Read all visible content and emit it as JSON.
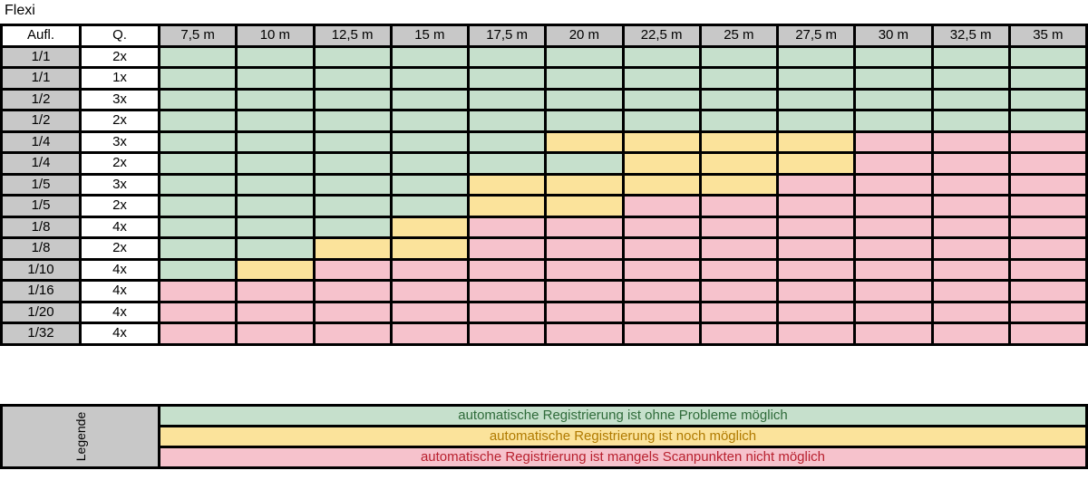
{
  "title": "Flexi",
  "header": {
    "col1": "Aufl.",
    "col2": "Q.",
    "distances": [
      "7,5 m",
      "10 m",
      "12,5 m",
      "15 m",
      "17,5 m",
      "20 m",
      "22,5 m",
      "25 m",
      "27,5 m",
      "30 m",
      "32,5 m",
      "35 m"
    ]
  },
  "rows": [
    {
      "aufl": "1/1",
      "q": "2x",
      "cells": [
        "g",
        "g",
        "g",
        "g",
        "g",
        "g",
        "g",
        "g",
        "g",
        "g",
        "g",
        "g"
      ]
    },
    {
      "aufl": "1/1",
      "q": "1x",
      "cells": [
        "g",
        "g",
        "g",
        "g",
        "g",
        "g",
        "g",
        "g",
        "g",
        "g",
        "g",
        "g"
      ]
    },
    {
      "aufl": "1/2",
      "q": "3x",
      "cells": [
        "g",
        "g",
        "g",
        "g",
        "g",
        "g",
        "g",
        "g",
        "g",
        "g",
        "g",
        "g"
      ]
    },
    {
      "aufl": "1/2",
      "q": "2x",
      "cells": [
        "g",
        "g",
        "g",
        "g",
        "g",
        "g",
        "g",
        "g",
        "g",
        "g",
        "g",
        "g"
      ]
    },
    {
      "aufl": "1/4",
      "q": "3x",
      "cells": [
        "g",
        "g",
        "g",
        "g",
        "g",
        "y",
        "y",
        "y",
        "y",
        "r",
        "r",
        "r"
      ]
    },
    {
      "aufl": "1/4",
      "q": "2x",
      "cells": [
        "g",
        "g",
        "g",
        "g",
        "g",
        "g",
        "y",
        "y",
        "y",
        "r",
        "r",
        "r"
      ]
    },
    {
      "aufl": "1/5",
      "q": "3x",
      "cells": [
        "g",
        "g",
        "g",
        "g",
        "y",
        "y",
        "y",
        "y",
        "r",
        "r",
        "r",
        "r"
      ]
    },
    {
      "aufl": "1/5",
      "q": "2x",
      "cells": [
        "g",
        "g",
        "g",
        "g",
        "y",
        "y",
        "r",
        "r",
        "r",
        "r",
        "r",
        "r"
      ]
    },
    {
      "aufl": "1/8",
      "q": "4x",
      "cells": [
        "g",
        "g",
        "g",
        "y",
        "r",
        "r",
        "r",
        "r",
        "r",
        "r",
        "r",
        "r"
      ]
    },
    {
      "aufl": "1/8",
      "q": "2x",
      "cells": [
        "g",
        "g",
        "y",
        "y",
        "r",
        "r",
        "r",
        "r",
        "r",
        "r",
        "r",
        "r"
      ]
    },
    {
      "aufl": "1/10",
      "q": "4x",
      "cells": [
        "g",
        "y",
        "r",
        "r",
        "r",
        "r",
        "r",
        "r",
        "r",
        "r",
        "r",
        "r"
      ]
    },
    {
      "aufl": "1/16",
      "q": "4x",
      "cells": [
        "r",
        "r",
        "r",
        "r",
        "r",
        "r",
        "r",
        "r",
        "r",
        "r",
        "r",
        "r"
      ]
    },
    {
      "aufl": "1/20",
      "q": "4x",
      "cells": [
        "r",
        "r",
        "r",
        "r",
        "r",
        "r",
        "r",
        "r",
        "r",
        "r",
        "r",
        "r"
      ]
    },
    {
      "aufl": "1/32",
      "q": "4x",
      "cells": [
        "r",
        "r",
        "r",
        "r",
        "r",
        "r",
        "r",
        "r",
        "r",
        "r",
        "r",
        "r"
      ]
    }
  ],
  "legend": {
    "title": "Legende",
    "green": "automatische Registrierung ist ohne Probleme möglich",
    "yellow": "automatische Registrierung ist noch möglich",
    "red": "automatische Registrierung ist mangels Scanpunkten nicht möglich"
  },
  "colors": {
    "green": "#c6e0cc",
    "yellow": "#fbe39b",
    "red": "#f6c2cc",
    "header_gray": "#c8c8c8"
  }
}
